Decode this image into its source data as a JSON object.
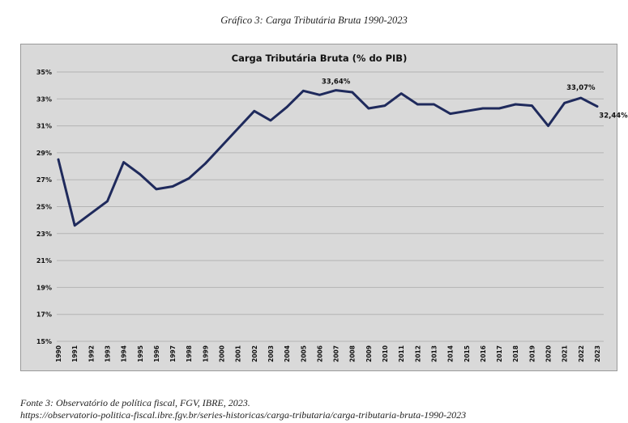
{
  "caption": "Gráfico 3: Carga Tributária Bruta 1990-2023",
  "source_line1": "Fonte 3: Observatório de política fiscal, FGV, IBRE, 2023.",
  "source_line2": "https://observatorio-politica-fiscal.ibre.fgv.br/series-historicas/carga-tributaria/carga-tributaria-bruta-1990-2023",
  "colors": {
    "plot_bg": "#d9d9d9",
    "line": "#1f2a5c",
    "grid": "#b4b4b4",
    "border": "#9a9a9a"
  },
  "chart_data": {
    "type": "line",
    "title": "Carga Tributária Bruta (% do PIB)",
    "xlabel": "",
    "ylabel": "",
    "ylim": [
      15,
      35
    ],
    "yticks": [
      15,
      17,
      19,
      21,
      23,
      25,
      27,
      29,
      31,
      33,
      35
    ],
    "ytick_labels": [
      "15%",
      "17%",
      "19%",
      "21%",
      "23%",
      "25%",
      "27%",
      "29%",
      "31%",
      "33%",
      "35%"
    ],
    "grid": true,
    "x": [
      "1990",
      "1991",
      "1992",
      "1993",
      "1994",
      "1995",
      "1996",
      "1997",
      "1998",
      "1999",
      "2000",
      "2001",
      "2002",
      "2003",
      "2004",
      "2005",
      "2006",
      "2007",
      "2008",
      "2009",
      "2010",
      "2011",
      "2012",
      "2013",
      "2014",
      "2015",
      "2016",
      "2017",
      "2018",
      "2019",
      "2020",
      "2021",
      "2022",
      "2023"
    ],
    "series": [
      {
        "values": [
          28.5,
          23.6,
          24.5,
          25.4,
          28.3,
          27.4,
          26.3,
          26.5,
          27.1,
          28.2,
          29.5,
          30.8,
          32.1,
          31.4,
          32.4,
          33.6,
          33.3,
          33.64,
          33.5,
          32.3,
          32.5,
          33.4,
          32.6,
          32.6,
          31.9,
          32.1,
          32.3,
          32.3,
          32.6,
          32.5,
          31.0,
          32.7,
          33.07,
          32.44
        ]
      }
    ],
    "annotations": [
      {
        "x": "2007",
        "text": "33,64%"
      },
      {
        "x": "2022",
        "text": "33,07%"
      },
      {
        "x": "2023",
        "text": "32,44%"
      }
    ]
  }
}
